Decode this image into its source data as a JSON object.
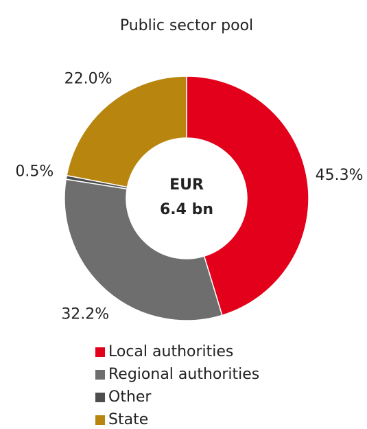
{
  "chart_data": {
    "type": "donut",
    "title": "Public sector pool",
    "center_text": [
      "EUR",
      "6.4 bn"
    ],
    "categories": [
      "Local authorities",
      "Regional authorities",
      "Other",
      "State"
    ],
    "values": [
      45.3,
      32.2,
      0.5,
      22.0
    ],
    "value_labels": [
      "45.3%",
      "32.2%",
      "0.5%",
      "22.0%"
    ],
    "colors": [
      "#e2001a",
      "#6e6e6e",
      "#4d4d4d",
      "#b8860e"
    ],
    "legend": "bottom"
  }
}
